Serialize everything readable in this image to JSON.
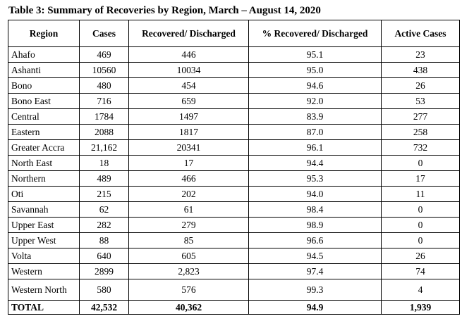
{
  "title": "Table 3: Summary of Recoveries by Region, March – August 14, 2020",
  "table": {
    "header": [
      "Region",
      "Cases",
      "Recovered/ Discharged",
      "% Recovered/ Discharged",
      "Active Cases"
    ],
    "rows": [
      [
        "Ahafo",
        "469",
        "446",
        "95.1",
        "23"
      ],
      [
        "Ashanti",
        "10560",
        "10034",
        "95.0",
        "438"
      ],
      [
        "Bono",
        "480",
        "454",
        "94.6",
        "26"
      ],
      [
        "Bono East",
        "716",
        "659",
        "92.0",
        "53"
      ],
      [
        "Central",
        "1784",
        "1497",
        "83.9",
        "277"
      ],
      [
        "Eastern",
        "2088",
        "1817",
        "87.0",
        "258"
      ],
      [
        "Greater Accra",
        "21,162",
        "20341",
        "96.1",
        "732"
      ],
      [
        "North East",
        "18",
        "17",
        "94.4",
        "0"
      ],
      [
        "Northern",
        "489",
        "466",
        "95.3",
        "17"
      ],
      [
        "Oti",
        "215",
        "202",
        "94.0",
        "11"
      ],
      [
        "Savannah",
        "62",
        "61",
        "98.4",
        "0"
      ],
      [
        "Upper East",
        "282",
        "279",
        "98.9",
        "0"
      ],
      [
        "Upper West",
        "88",
        "85",
        "96.6",
        "0"
      ],
      [
        "Volta",
        "640",
        "605",
        "94.5",
        "26"
      ],
      [
        "Western",
        "2899",
        "2,823",
        "97.4",
        "74"
      ],
      [
        "Western North",
        "580",
        "576",
        "99.3",
        "4"
      ]
    ],
    "total": [
      "TOTAL",
      "42,532",
      "40,362",
      "94.9",
      "1,939"
    ]
  }
}
